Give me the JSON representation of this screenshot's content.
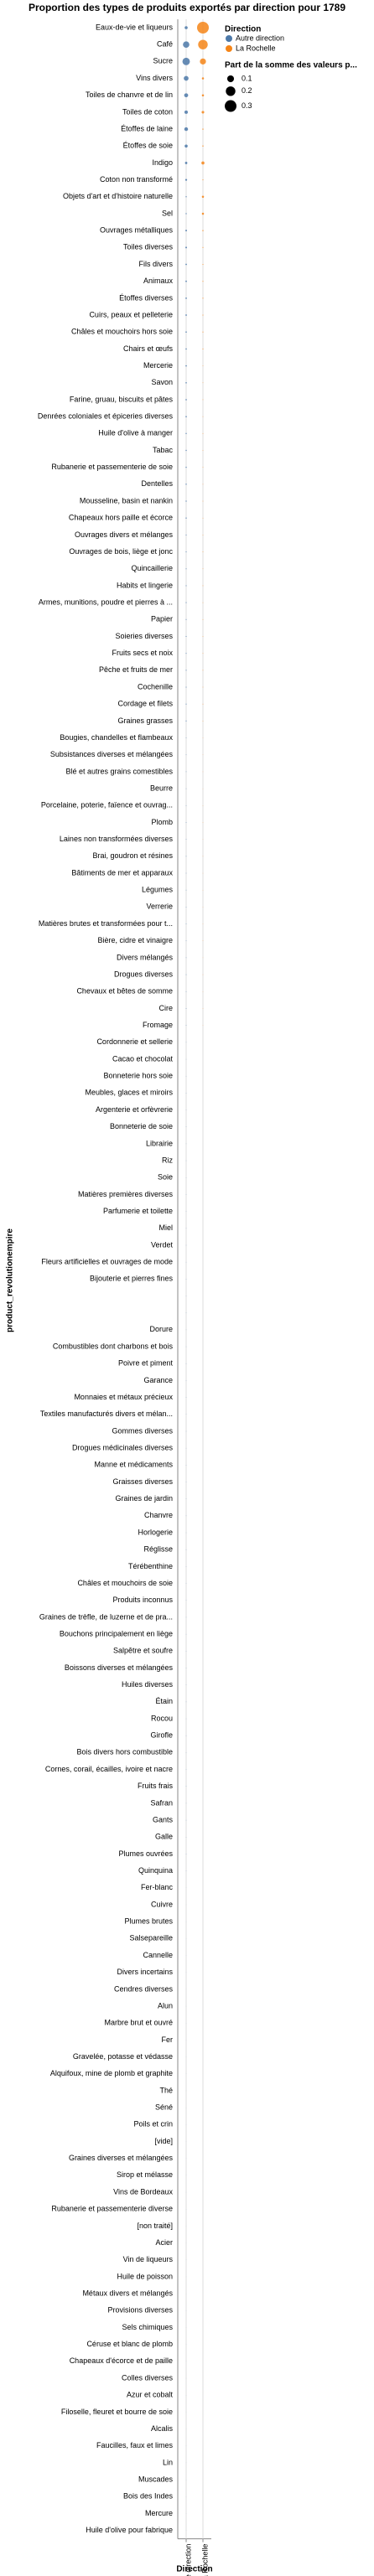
{
  "chart_data": {
    "type": "bubble",
    "title": "Proportion des types de produits exportés par direction pour 1789",
    "x_label": "Direction",
    "y_label": "product_revolutionempire",
    "categories": [
      "Eaux-de-vie et liqueurs",
      "Café",
      "Sucre",
      "Vins divers",
      "Toiles de chanvre et de lin",
      "Toiles de coton",
      "Étoffes de laine",
      "Étoffes de soie",
      "Indigo",
      "Coton non transformé",
      "Objets d'art et d'histoire naturelle",
      "Sel",
      "Ouvrages métalliques",
      "Toiles diverses",
      "Fils divers",
      "Animaux",
      "Étoffes diverses",
      "Cuirs, peaux et pelleterie",
      "Châles et mouchoirs hors soie",
      "Chairs et œufs",
      "Mercerie",
      "Savon",
      "Farine, gruau, biscuits et pâtes",
      "Denrées coloniales et épiceries diverses",
      "Huile d'olive à manger",
      "Tabac",
      "Rubanerie et passementerie de soie",
      "Dentelles",
      "Mousseline, basin et nankin",
      "Chapeaux hors paille et écorce",
      "Ouvrages divers et mélanges",
      "Ouvrages de bois, liège et jonc",
      "Quincaillerie",
      "Habits et lingerie",
      "Armes, munitions, poudre et pierres à ...",
      "Papier",
      "Soieries diverses",
      "Fruits secs et noix",
      "Pêche et fruits de mer",
      "Cochenille",
      "Cordage et filets",
      "Graines grasses",
      "Bougies, chandelles et flambeaux",
      "Subsistances diverses et mélangées",
      "Blé et autres grains comestibles",
      "Beurre",
      "Porcelaine, poterie, faïence et ouvrag...",
      "Plomb",
      "Laines non transformées diverses",
      "Brai, goudron et résines",
      "Bâtiments de mer et apparaux",
      "Légumes",
      "Verrerie",
      "Matières brutes et transformées pour t...",
      "Bière, cidre et vinaigre",
      "Divers mélangés",
      "Drogues diverses",
      "Chevaux et bêtes de somme",
      "Cire",
      "Fromage",
      "Cordonnerie et sellerie",
      "Cacao et chocolat",
      "Bonneterie hors soie",
      "Meubles, glaces et miroirs",
      "Argenterie et orfèvrerie",
      "Bonneterie de soie",
      "Librairie",
      "Riz",
      "Soie",
      "Matières premières diverses",
      "Parfumerie et toilette",
      "Miel",
      "Verdet",
      "Fleurs artificielles et ouvrages de mode",
      "Bijouterie et pierres fines",
      null,
      null,
      "Dorure",
      "Combustibles dont charbons et bois",
      "Poivre et piment",
      "Garance",
      "Monnaies et métaux précieux",
      "Textiles manufacturés divers et mélan...",
      "Gommes diverses",
      "Drogues médicinales diverses",
      "Manne et médicaments",
      "Graisses diverses",
      "Graines de jardin",
      "Chanvre",
      "Horlogerie",
      "Réglisse",
      "Térébenthine",
      "Châles et mouchoirs de soie",
      "Produits inconnus",
      "Graines de trèfle, de luzerne et de pra...",
      "Bouchons principalement en liège",
      "Salpêtre et soufre",
      "Boissons diverses et mélangées",
      "Huiles diverses",
      "Étain",
      "Rocou",
      "Girofle",
      "Bois divers hors combustible",
      "Cornes, corail, écailles, ivoire et nacre",
      "Fruits frais",
      "Safran",
      "Gants",
      "Galle",
      "Plumes ouvrées",
      "Quinquina",
      "Fer-blanc",
      "Cuivre",
      "Plumes brutes",
      "Salsepareille",
      "Cannelle",
      "Divers incertains",
      "Cendres diverses",
      "Alun",
      "Marbre brut et ouvré",
      "Fer",
      "Gravelée, potasse et védasse",
      "Alquifoux, mine de plomb et graphite",
      "Thé",
      "Séné",
      "Poils et crin",
      "[vide]",
      "Graines diverses et mélangées",
      "Sirop et mélasse",
      "Vins de Bordeaux",
      "Rubanerie et passementerie diverse",
      "[non traité]",
      "Acier",
      "Vin de liqueurs",
      "Huile de poisson",
      "Métaux divers et mélangés",
      "Provisions diverses",
      "Sels chimiques",
      "Céruse et blanc de plomb",
      "Chapeaux d'écorce et de paille",
      "Colles diverses",
      "Azur et cobalt",
      "Filoselle, fleuret et bourre de soie",
      "Alcalis",
      "Faucilles, faux et limes",
      "Lin",
      "Muscades",
      "Bois des Indes",
      "Mercure",
      "Huile d'olive pour fabrique"
    ],
    "legend_title": "Direction",
    "series": [
      {
        "name": "Autre direction",
        "color": "#4c78a8",
        "values": [
          0.02,
          0.09,
          0.12,
          0.05,
          0.035,
          0.025,
          0.03,
          0.02,
          0.012,
          0.008,
          0.003,
          0.003,
          0.006,
          0.006,
          0.005,
          0.005,
          0.005,
          0.005,
          0.004,
          0.004,
          0.004,
          0.004,
          0.004,
          0.004,
          0.003,
          0.003,
          0.003,
          0.003,
          0.003,
          0.003,
          0.002,
          0.002,
          0.002,
          0.002,
          0.002,
          0.002,
          0.002,
          0.002,
          0.002,
          0.002,
          0.002,
          0.002,
          0.001,
          0.001,
          0.001,
          0.001,
          0.001,
          0.001,
          0.001,
          0.001,
          0.001,
          0.001,
          0.001,
          0.001,
          0.001,
          0.001,
          0.001,
          0.001,
          0.001,
          0.001,
          0.0005,
          0.0005,
          0.0005,
          0.0005,
          0.0005,
          0.0005,
          0.0005,
          0.0005,
          0.0005,
          0.0005,
          0.0005,
          0.0005,
          0.0005,
          0.0005,
          0.0005,
          0.0005,
          0.0005,
          0.0005,
          0.0005,
          0.0005,
          0.0005,
          0.0005,
          0.0005,
          0.0005,
          0.0005,
          0.0005,
          0.0005,
          0.0005,
          0.0005,
          0.0005,
          0.0005,
          0.0005,
          0.0005,
          0.0005,
          0.0005,
          0.0005,
          0.0005,
          0.0005,
          0.0005,
          0.0005,
          0.0005,
          0.0005,
          0.0005,
          0.0005,
          0.0005,
          0.0005,
          0.0005,
          0.0005,
          0.0005,
          0.0005,
          0.0002,
          0.0002,
          0.0002,
          0.0002,
          0.0002,
          0.0002,
          0.0002,
          0.0002,
          0.0002,
          0.0002,
          0.0002,
          0.0002,
          0.0002,
          0.0002,
          0.0002,
          0.0002,
          0.0002,
          0.0002,
          0.0002,
          0.0002,
          0.0002,
          0.0002,
          0.0002,
          0.0002,
          0.0002,
          0.0002,
          0.0002,
          0.0002,
          0.0002,
          0.0002,
          0.0002,
          0.0002,
          0.0002,
          0.0002,
          0.0002,
          0.0002,
          0.0002,
          0.0002,
          0.0002
        ]
      },
      {
        "name": "La Rochelle",
        "color": "#f58518",
        "values": [
          0.3,
          0.2,
          0.08,
          0.01,
          0.01,
          0.015,
          0.003,
          0.003,
          0.02,
          0.002,
          0.01,
          0.01,
          0.003,
          0.002,
          0.002,
          0.002,
          0.002,
          0.002,
          0.002,
          0.002,
          0.001,
          0.001,
          0.001,
          0.001,
          0.001,
          0.001,
          0.001,
          0.001,
          0.001,
          0.001,
          0.001,
          0.001,
          0.001,
          0.001,
          0.001,
          0.001,
          0.001,
          0.001,
          0.001,
          0.001,
          0.001,
          0.001,
          0.0005,
          0.0005,
          0.0005,
          0.0005,
          0.0005,
          0.0005,
          0.0005,
          0.0005,
          0.0005,
          0.0005,
          0.0005,
          0.0005,
          0.0005,
          0.0005,
          0.0005,
          0.0005,
          0.0005,
          0.0005,
          null,
          null,
          null,
          null,
          null,
          null,
          null,
          null,
          null,
          null,
          null,
          null,
          null,
          null,
          null,
          null,
          null,
          null,
          null,
          null,
          null,
          null,
          null,
          null,
          null,
          null,
          null,
          null,
          null,
          null,
          null,
          null,
          null,
          null,
          null,
          null,
          null,
          null,
          null,
          null,
          null,
          null,
          null,
          null,
          null,
          null,
          null,
          null,
          null,
          null,
          null,
          null,
          null,
          null,
          null,
          null,
          null,
          null,
          null,
          null,
          null,
          null,
          null,
          null,
          null,
          null,
          null,
          null,
          null,
          null,
          null,
          null,
          null,
          null,
          null,
          null,
          null,
          null,
          null,
          null,
          null,
          null,
          null,
          null,
          null,
          null,
          null,
          null,
          null
        ]
      }
    ],
    "size_legend": {
      "title": "Part de la somme des valeurs p...",
      "values": [
        0.1,
        0.2,
        0.3
      ]
    }
  }
}
